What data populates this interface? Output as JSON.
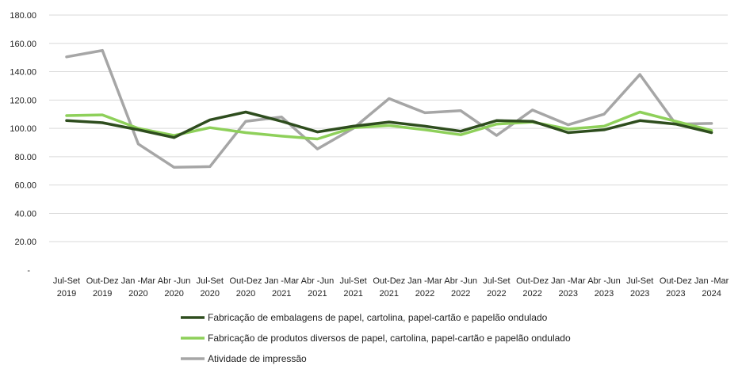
{
  "chart_data": {
    "type": "line",
    "title": "",
    "xlabel": "",
    "ylabel": "",
    "ylim": [
      0,
      180
    ],
    "y_ticks": [
      "-",
      "20.00",
      "40.00",
      "60.00",
      "80.00",
      "100.00",
      "120.00",
      "140.00",
      "160.00",
      "180.00"
    ],
    "grid": "horizontal",
    "legend_position": "bottom",
    "categories": [
      {
        "line1": "Jul-Set",
        "line2": "2019"
      },
      {
        "line1": "Out-Dez",
        "line2": "2019"
      },
      {
        "line1": "Jan -Mar",
        "line2": "2020"
      },
      {
        "line1": "Abr -Jun",
        "line2": "2020"
      },
      {
        "line1": "Jul-Set",
        "line2": "2020"
      },
      {
        "line1": "Out-Dez",
        "line2": "2020"
      },
      {
        "line1": "Jan -Mar",
        "line2": "2021"
      },
      {
        "line1": "Abr -Jun",
        "line2": "2021"
      },
      {
        "line1": "Jul-Set",
        "line2": "2021"
      },
      {
        "line1": "Out-Dez",
        "line2": "2021"
      },
      {
        "line1": "Jan -Mar",
        "line2": "2022"
      },
      {
        "line1": "Abr -Jun",
        "line2": "2022"
      },
      {
        "line1": "Jul-Set",
        "line2": "2022"
      },
      {
        "line1": "Out-Dez",
        "line2": "2022"
      },
      {
        "line1": "Jan -Mar",
        "line2": "2023"
      },
      {
        "line1": "Abr -Jun",
        "line2": "2023"
      },
      {
        "line1": "Jul-Set",
        "line2": "2023"
      },
      {
        "line1": "Out-Dez",
        "line2": "2023"
      },
      {
        "line1": "Jan -Mar",
        "line2": "2024"
      }
    ],
    "series": [
      {
        "name": "Fabricação de embalagens de papel, cartolina, papel-cartão e papelão ondulado",
        "color": "#2e4d1e",
        "values": [
          105.5,
          104,
          99,
          93.5,
          106,
          111.5,
          105,
          97.5,
          101.5,
          104.5,
          101.5,
          98,
          105.5,
          105,
          97,
          99,
          105.5,
          103,
          97
        ]
      },
      {
        "name": "Fabricação de produtos diversos de papel, cartolina, papel-cartão e papelão ondulado",
        "color": "#8ed05a",
        "values": [
          109,
          109.5,
          100,
          95,
          100.5,
          97,
          94.5,
          92.5,
          100.5,
          102,
          99,
          95.5,
          103,
          104.5,
          99.5,
          101.5,
          111.5,
          105,
          98.5
        ]
      },
      {
        "name": "Atividade de impressão",
        "color": "#a6a6a6",
        "values": [
          150.5,
          155,
          89,
          72.5,
          73,
          105,
          108,
          85.5,
          100,
          121,
          111,
          112.5,
          95,
          113,
          102.5,
          110,
          138,
          103,
          103.5
        ]
      }
    ]
  }
}
